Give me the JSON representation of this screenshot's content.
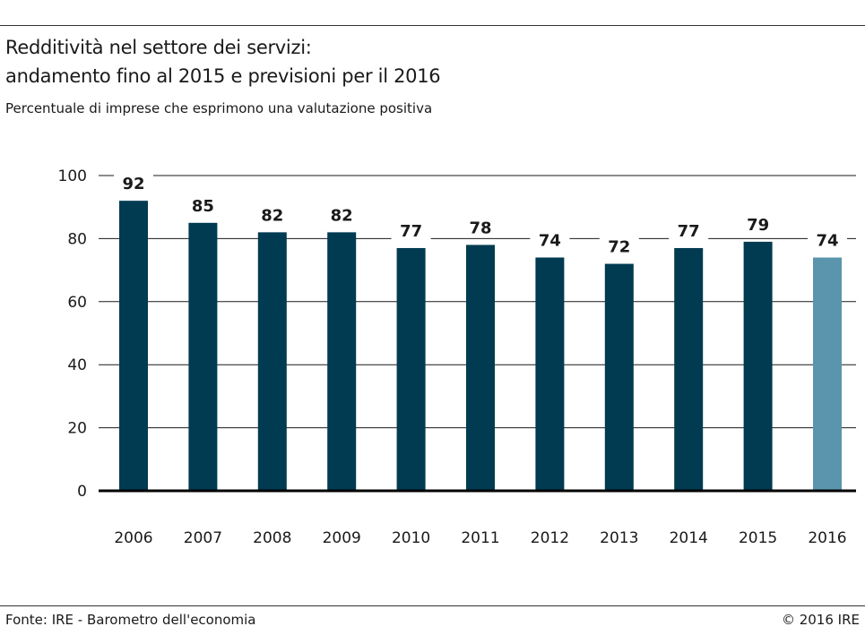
{
  "header": {
    "title_line1": "Redditività nel settore dei servizi:",
    "title_line2": "andamento fino al 2015 e previsioni per il 2016",
    "subtitle": "Percentuale di imprese che esprimono una valutazione positiva"
  },
  "footer": {
    "source": "Fonte: IRE - Barometro dell'economia",
    "copyright": "© 2016 IRE"
  },
  "colors": {
    "actual": "#003b52",
    "forecast": "#5b95ad",
    "grid": "#1a1a1a",
    "axis": "#000000"
  },
  "chart_data": {
    "type": "bar",
    "categories": [
      "2006",
      "2007",
      "2008",
      "2009",
      "2010",
      "2011",
      "2012",
      "2013",
      "2014",
      "2015",
      "2016"
    ],
    "values": [
      92,
      85,
      82,
      82,
      77,
      78,
      74,
      72,
      77,
      79,
      74
    ],
    "forecast": [
      false,
      false,
      false,
      false,
      false,
      false,
      false,
      false,
      false,
      false,
      true
    ],
    "ylim": [
      0,
      100
    ],
    "yticks": [
      0,
      20,
      40,
      60,
      80,
      100
    ],
    "grid": true,
    "xlabel": "",
    "ylabel": ""
  }
}
